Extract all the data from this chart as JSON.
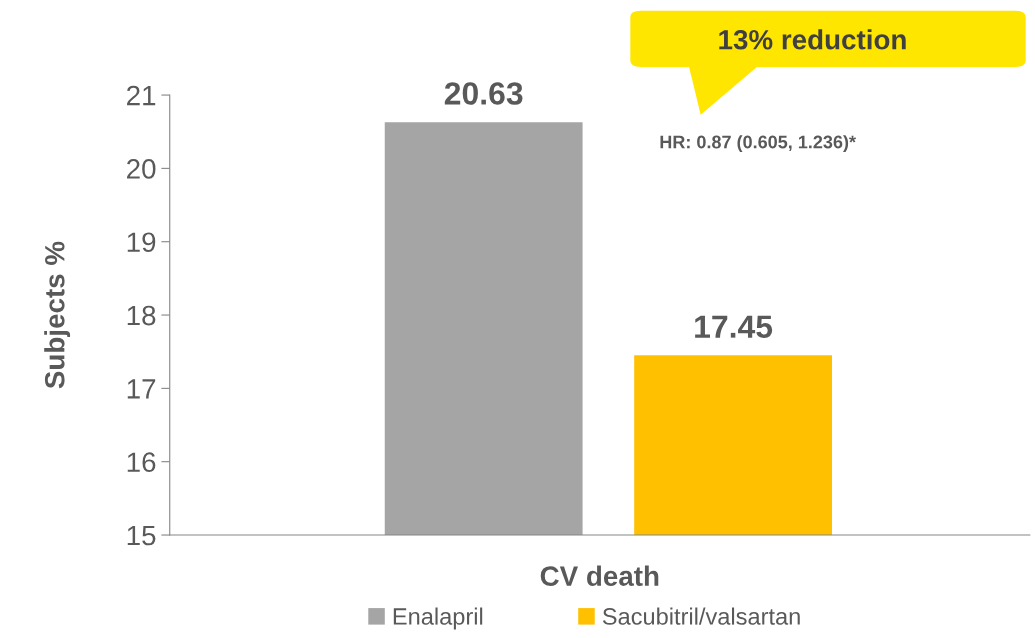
{
  "chart_data": {
    "type": "bar",
    "ylabel": "Subjects %",
    "categories": [
      "CV death"
    ],
    "series": [
      {
        "name": "Enalapril",
        "color": "#a5a5a5",
        "values": [
          20.63
        ]
      },
      {
        "name": "Sacubitril/valsartan",
        "color": "#ffc000",
        "values": [
          17.45
        ]
      }
    ],
    "ylim": [
      15,
      21
    ],
    "yticks": [
      15,
      16,
      17,
      18,
      19,
      20,
      21
    ],
    "data_labels": true,
    "grid": false,
    "legend": "bottom",
    "annotations": [
      "13% reduction",
      "HR: 0.87 (0.605, 1.236)*"
    ]
  }
}
